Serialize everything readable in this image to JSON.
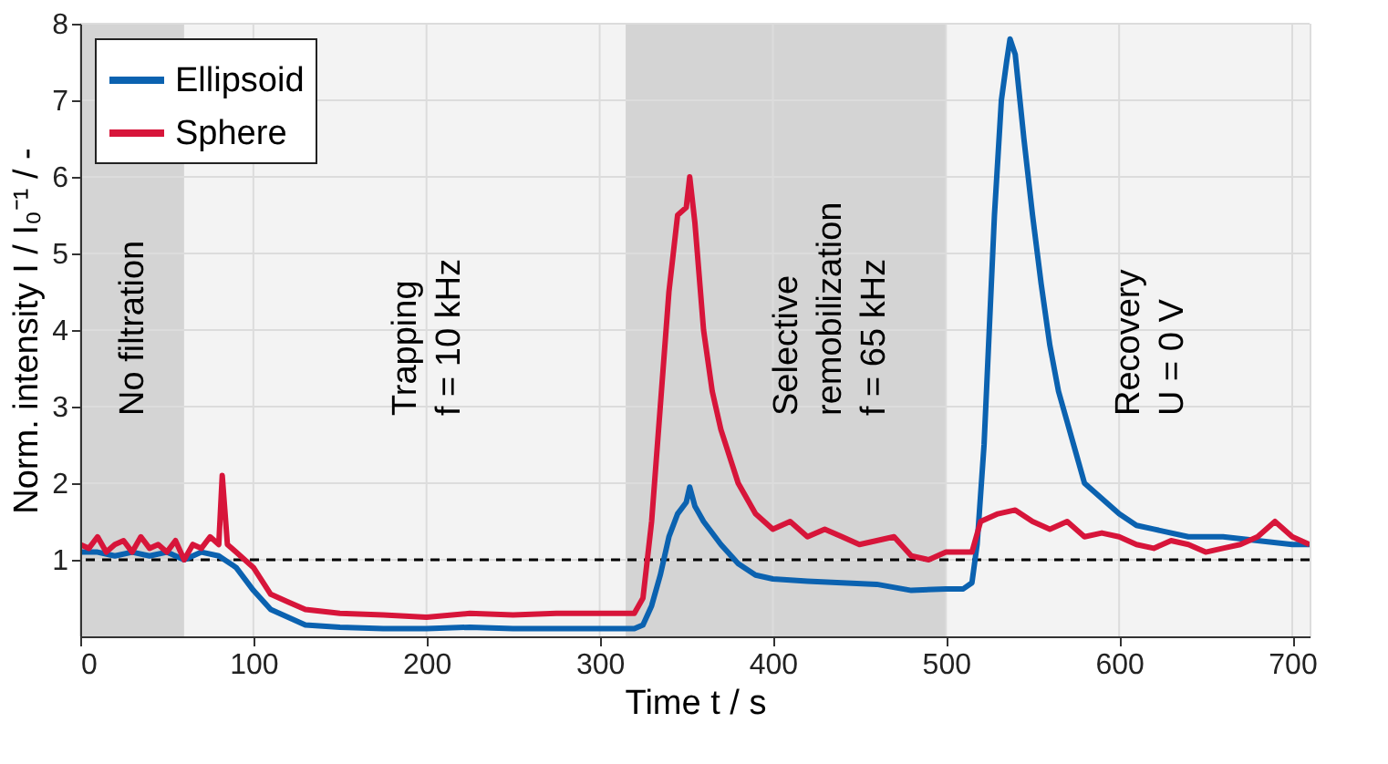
{
  "chart_data": {
    "type": "line",
    "xlabel": "Time t / s",
    "ylabel": "Norm. intensity I / I₀⁻¹ / -",
    "xlim": [
      0,
      710
    ],
    "xticks": [
      0,
      100,
      200,
      300,
      400,
      500,
      600,
      700
    ],
    "ylim": [
      0,
      8
    ],
    "yticks": [
      1,
      2,
      3,
      4,
      5,
      6,
      7,
      8
    ],
    "grid": true,
    "legend": "top left",
    "bands": [
      {
        "axis": "x",
        "from": 0,
        "to": 60,
        "label": "No filtration",
        "color": "#d4d4d4"
      },
      {
        "axis": "x",
        "from": 60,
        "to": 315,
        "label": "Trapping\nf = 10 kHz",
        "color": "#f3f3f3"
      },
      {
        "axis": "x",
        "from": 315,
        "to": 500,
        "label": "Selective\nremobilization\nf = 65 kHz",
        "color": "#d4d4d4"
      },
      {
        "axis": "x",
        "from": 500,
        "to": 710,
        "label": "Recovery\nU = 0 V",
        "color": "#f3f3f3"
      }
    ],
    "ref_lines": [
      {
        "axis": "y",
        "value": 1,
        "color": "#000000",
        "line_style": "dashed"
      }
    ],
    "series": [
      {
        "name": "Ellipsoid",
        "color": "#0b62b0",
        "x": [
          0,
          10,
          20,
          30,
          40,
          50,
          60,
          70,
          80,
          90,
          100,
          110,
          120,
          130,
          150,
          175,
          200,
          225,
          250,
          275,
          300,
          320,
          325,
          330,
          335,
          340,
          345,
          350,
          352,
          355,
          360,
          370,
          380,
          390,
          400,
          420,
          440,
          460,
          480,
          500,
          510,
          515,
          518,
          522,
          525,
          528,
          532,
          535,
          537,
          540,
          545,
          550,
          555,
          560,
          565,
          570,
          575,
          580,
          590,
          600,
          610,
          620,
          640,
          660,
          680,
          700,
          710
        ],
        "values": [
          1.1,
          1.1,
          1.05,
          1.1,
          1.05,
          1.1,
          1.0,
          1.1,
          1.05,
          0.9,
          0.6,
          0.35,
          0.25,
          0.15,
          0.12,
          0.1,
          0.1,
          0.12,
          0.1,
          0.1,
          0.1,
          0.1,
          0.15,
          0.4,
          0.8,
          1.3,
          1.6,
          1.75,
          1.95,
          1.7,
          1.5,
          1.2,
          0.95,
          0.8,
          0.75,
          0.72,
          0.7,
          0.68,
          0.6,
          0.62,
          0.62,
          0.7,
          1.2,
          2.5,
          4.0,
          5.5,
          7.0,
          7.5,
          7.8,
          7.6,
          6.5,
          5.5,
          4.6,
          3.8,
          3.2,
          2.8,
          2.4,
          2.0,
          1.8,
          1.6,
          1.45,
          1.4,
          1.3,
          1.3,
          1.25,
          1.2,
          1.2
        ]
      },
      {
        "name": "Sphere",
        "color": "#d7153a",
        "x": [
          0,
          5,
          10,
          15,
          20,
          25,
          30,
          35,
          40,
          45,
          50,
          55,
          60,
          65,
          70,
          75,
          80,
          82,
          85,
          90,
          100,
          110,
          120,
          130,
          150,
          175,
          200,
          225,
          250,
          275,
          300,
          320,
          325,
          330,
          335,
          340,
          345,
          350,
          352,
          355,
          360,
          365,
          370,
          380,
          390,
          400,
          410,
          420,
          430,
          440,
          450,
          460,
          470,
          480,
          490,
          500,
          515,
          520,
          530,
          540,
          550,
          560,
          570,
          580,
          590,
          600,
          610,
          620,
          630,
          640,
          650,
          660,
          670,
          680,
          690,
          700,
          710
        ],
        "values": [
          1.2,
          1.15,
          1.3,
          1.1,
          1.2,
          1.25,
          1.1,
          1.3,
          1.15,
          1.2,
          1.1,
          1.25,
          1.0,
          1.2,
          1.15,
          1.3,
          1.2,
          2.1,
          1.2,
          1.1,
          0.9,
          0.55,
          0.45,
          0.35,
          0.3,
          0.28,
          0.25,
          0.3,
          0.28,
          0.3,
          0.3,
          0.3,
          0.5,
          1.5,
          3.0,
          4.5,
          5.5,
          5.6,
          6.0,
          5.4,
          4.0,
          3.2,
          2.7,
          2.0,
          1.6,
          1.4,
          1.5,
          1.3,
          1.4,
          1.3,
          1.2,
          1.25,
          1.3,
          1.05,
          1.0,
          1.1,
          1.1,
          1.5,
          1.6,
          1.65,
          1.5,
          1.4,
          1.5,
          1.3,
          1.35,
          1.3,
          1.2,
          1.15,
          1.25,
          1.2,
          1.1,
          1.15,
          1.2,
          1.3,
          1.5,
          1.3,
          1.2
        ]
      }
    ]
  }
}
